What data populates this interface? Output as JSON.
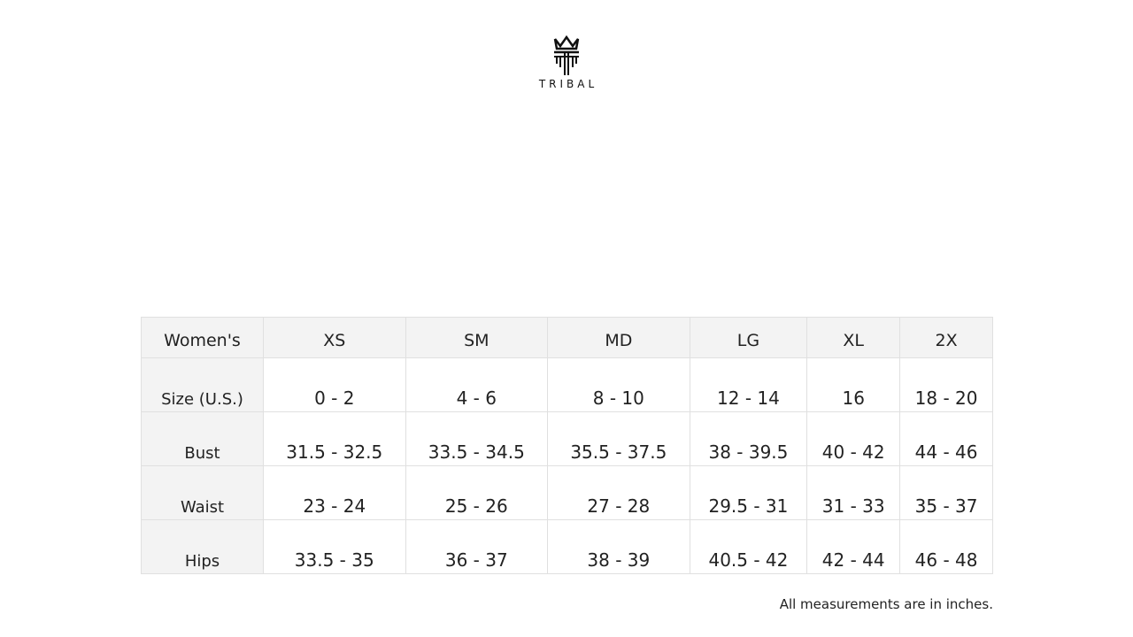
{
  "brand": {
    "name": "TRIBAL"
  },
  "table": {
    "header": [
      "Women's",
      "XS",
      "SM",
      "MD",
      "LG",
      "XL",
      "2X"
    ],
    "rows": [
      {
        "label": "Size (U.S.)",
        "values": [
          "0 - 2",
          "4 - 6",
          "8 - 10",
          "12 - 14",
          "16",
          "18 - 20"
        ]
      },
      {
        "label": "Bust",
        "values": [
          "31.5 - 32.5",
          "33.5 - 34.5",
          "35.5 - 37.5",
          "38 - 39.5",
          "40 - 42",
          "44 - 46"
        ]
      },
      {
        "label": "Waist",
        "values": [
          "23 - 24",
          "25 - 26",
          "27 - 28",
          "29.5 - 31",
          "31 - 33",
          "35 - 37"
        ]
      },
      {
        "label": "Hips",
        "values": [
          "33.5 - 35",
          "36 - 37",
          "38 - 39",
          "40.5 - 42",
          "42 - 44",
          "46 - 48"
        ]
      }
    ]
  },
  "note": "All measurements are in inches."
}
